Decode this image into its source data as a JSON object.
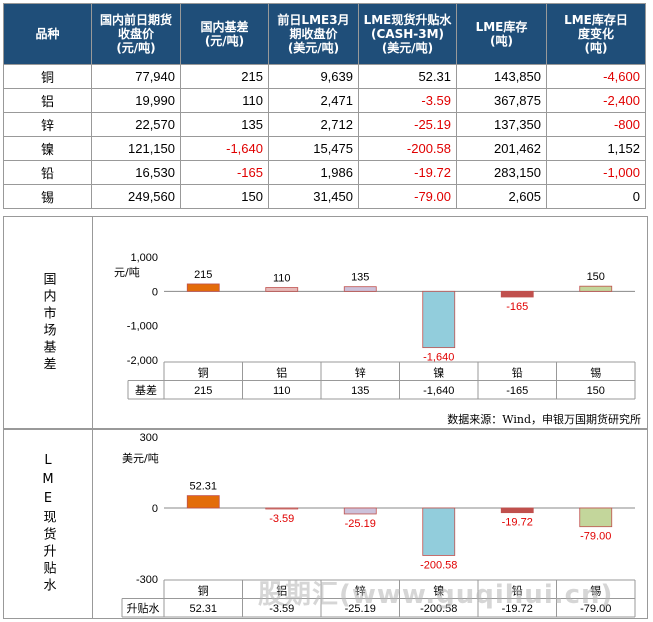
{
  "table": {
    "headers": [
      "品种",
      "国内前日期货收盘价(元/吨)",
      "国内基差(元/吨)",
      "前日LME3月期收盘价(美元/吨)",
      "LME现货升贴水(CASH-3M)(美元/吨)",
      "LME库存(吨)",
      "LME库存日度变化(吨)"
    ],
    "header_lines": [
      [
        "品种"
      ],
      [
        "国内前日期货",
        "收盘价",
        "(元/吨)"
      ],
      [
        "国内基差",
        "(元/吨)"
      ],
      [
        "前日LME3月",
        "期收盘价",
        "(美元/吨)"
      ],
      [
        "LME现货升贴水",
        "(CASH-3M)",
        "(美元/吨)"
      ],
      [
        "LME库存",
        "(吨)"
      ],
      [
        "LME库存日",
        "度变化",
        "(吨)"
      ]
    ],
    "rows": [
      [
        "铜",
        "77,940",
        "215",
        "9,639",
        "52.31",
        "143,850",
        "-4,600"
      ],
      [
        "铝",
        "19,990",
        "110",
        "2,471",
        "-3.59",
        "367,875",
        "-2,400"
      ],
      [
        "锌",
        "22,570",
        "135",
        "2,712",
        "-25.19",
        "137,350",
        "-800"
      ],
      [
        "镍",
        "121,150",
        "-1,640",
        "15,475",
        "-200.58",
        "201,462",
        "1,152"
      ],
      [
        "铅",
        "16,530",
        "-165",
        "1,986",
        "-19.72",
        "283,150",
        "-1,000"
      ],
      [
        "锡",
        "249,560",
        "150",
        "31,450",
        "-79.00",
        "2,605",
        "0"
      ]
    ]
  },
  "section1": {
    "label": "国内市场基差",
    "unit": "元/吨",
    "row_label": "基差",
    "source": "数据来源：Wind，申银万国期货研究所"
  },
  "section2": {
    "label": "LME现货升贴水",
    "unit": "美元/吨",
    "row_label": "升贴水"
  },
  "watermark": "股期汇(www.guqihui.cn)",
  "colors": {
    "header_bg": "#1f4e79",
    "negative_text": "#e00000",
    "bar_colors": [
      "#e36c0a",
      "#e6b9b8",
      "#ccc1da",
      "#92cddc",
      "#c0504d",
      "#c3d69b"
    ]
  },
  "chart_data": [
    {
      "type": "bar",
      "categories": [
        "铜",
        "铝",
        "锌",
        "镍",
        "铅",
        "锡"
      ],
      "values": [
        215,
        110,
        135,
        -1640,
        -165,
        150
      ],
      "data_labels": [
        "215",
        "110",
        "135",
        "-1,640",
        "-165",
        "150"
      ],
      "title": "",
      "ylabel": "元/吨",
      "yticks": [
        "1,000",
        "0",
        "-1,000",
        "-2,000"
      ],
      "ytick_values": [
        1000,
        0,
        -1000,
        -2000
      ],
      "ylim": [
        -2000,
        1000
      ],
      "table_values": [
        "215",
        "110",
        "135",
        "-1,640",
        "-165",
        "150"
      ],
      "legend": "none"
    },
    {
      "type": "bar",
      "categories": [
        "铜",
        "铝",
        "锌",
        "镍",
        "铅",
        "锡"
      ],
      "values": [
        52.31,
        -3.59,
        -25.19,
        -200.58,
        -19.72,
        -79.0
      ],
      "data_labels": [
        "52.31",
        "-3.59",
        "-25.19",
        "-200.58",
        "-19.72",
        "-79.00"
      ],
      "title": "",
      "ylabel": "美元/吨",
      "yticks": [
        "300",
        "0",
        "-300"
      ],
      "ytick_values": [
        300,
        0,
        -300
      ],
      "ylim": [
        -300,
        300
      ],
      "table_values": [
        "52.31",
        "-3.59",
        "-25.19",
        "-200.58",
        "-19.72",
        "-79.00"
      ],
      "legend": "none"
    }
  ]
}
